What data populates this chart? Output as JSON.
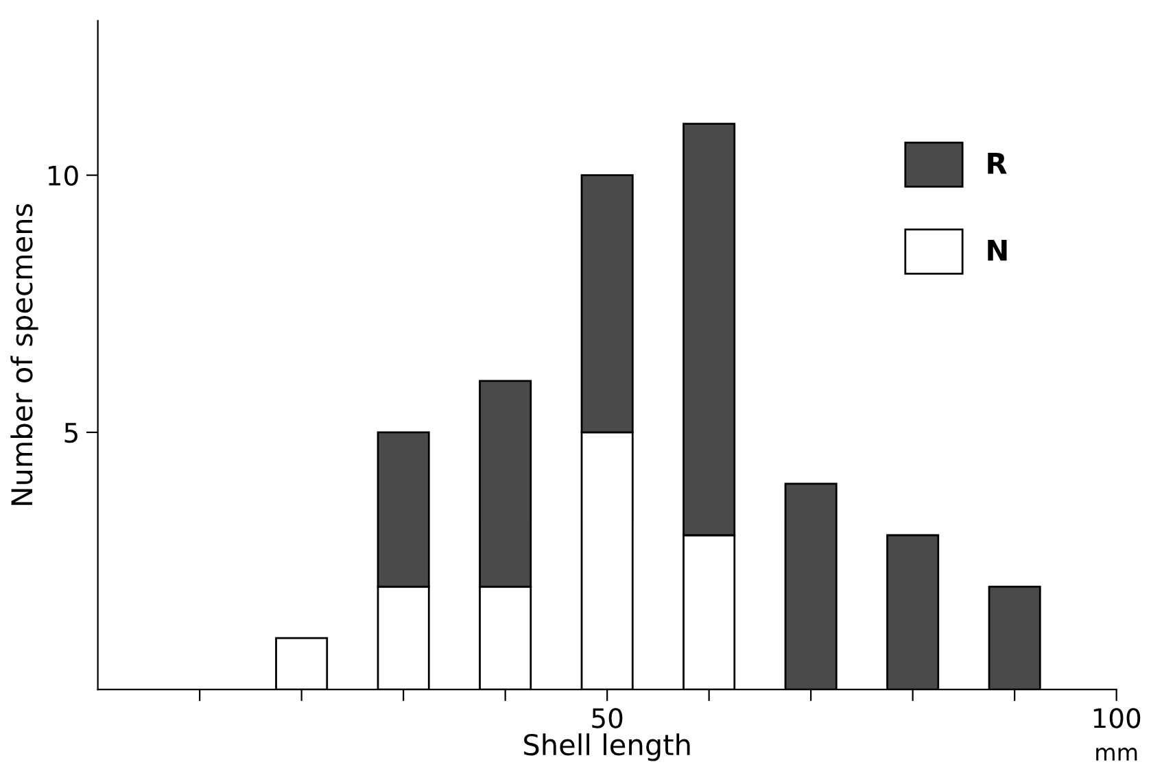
{
  "chart_data": {
    "type": "bar",
    "stacked": true,
    "x": [
      20,
      30,
      40,
      50,
      60,
      70,
      80,
      90
    ],
    "series": [
      {
        "name": "N",
        "color": "#ffffff",
        "values": [
          1,
          2,
          2,
          5,
          3,
          0,
          0,
          0
        ]
      },
      {
        "name": "R",
        "color": "#4a4a4a",
        "values": [
          0,
          3,
          4,
          5,
          8,
          4,
          3,
          2
        ]
      }
    ],
    "xlabel": "Shell length",
    "ylabel": "Number of specmens",
    "annotations": [
      "mm"
    ],
    "xlim": [
      0,
      100
    ],
    "ylim": [
      0,
      13
    ],
    "xticks": [
      {
        "value": 10,
        "label": null
      },
      {
        "value": 20,
        "label": null
      },
      {
        "value": 30,
        "label": null
      },
      {
        "value": 40,
        "label": null
      },
      50,
      {
        "value": 60,
        "label": null
      },
      {
        "value": 70,
        "label": null
      },
      {
        "value": 80,
        "label": null
      },
      {
        "value": 90,
        "label": null
      },
      100
    ],
    "yticks": [
      5,
      10
    ],
    "grid": false,
    "legend": "right"
  }
}
